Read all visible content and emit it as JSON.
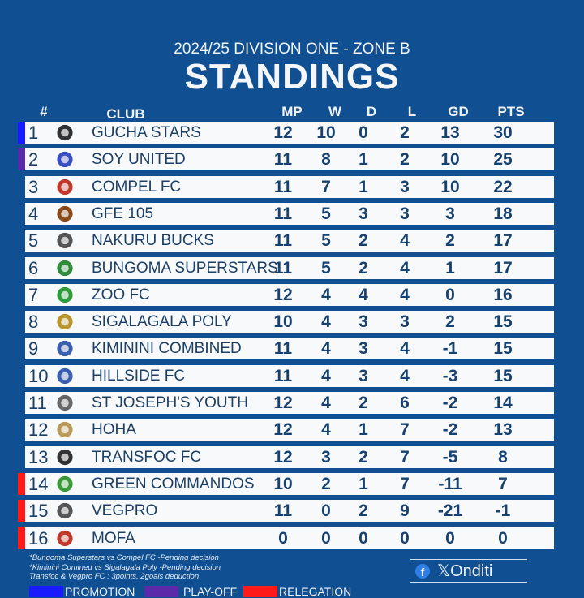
{
  "header": {
    "subtitle": "2024/25 DIVISION ONE - ZONE B",
    "title": "STANDINGS"
  },
  "columns": {
    "rank": "#",
    "club": "CLUB",
    "mp": "MP",
    "w": "W",
    "d": "D",
    "l": "L",
    "gd": "GD",
    "pts": "PTS"
  },
  "rows": [
    {
      "rank": "1",
      "club": "GUCHA STARS",
      "mp": "12",
      "w": "10",
      "d": "0",
      "l": "2",
      "gd": "13",
      "pts": "30",
      "status": "promotion"
    },
    {
      "rank": "2",
      "club": "SOY UNITED",
      "mp": "11",
      "w": "8",
      "d": "1",
      "l": "2",
      "gd": "10",
      "pts": "25",
      "status": "play-off"
    },
    {
      "rank": "3",
      "club": "COMPEL FC",
      "mp": "11",
      "w": "7",
      "d": "1",
      "l": "3",
      "gd": "10",
      "pts": "22",
      "status": ""
    },
    {
      "rank": "4",
      "club": "GFE 105",
      "mp": "11",
      "w": "5",
      "d": "3",
      "l": "3",
      "gd": "3",
      "pts": "18",
      "status": ""
    },
    {
      "rank": "5",
      "club": "NAKURU BUCKS",
      "mp": "11",
      "w": "5",
      "d": "2",
      "l": "4",
      "gd": "2",
      "pts": "17",
      "status": ""
    },
    {
      "rank": "6",
      "club": "BUNGOMA SUPERSTARS",
      "mp": "11",
      "w": "5",
      "d": "2",
      "l": "4",
      "gd": "1",
      "pts": "17",
      "status": ""
    },
    {
      "rank": "7",
      "club": "ZOO FC",
      "mp": "12",
      "w": "4",
      "d": "4",
      "l": "4",
      "gd": "0",
      "pts": "16",
      "status": ""
    },
    {
      "rank": "8",
      "club": "SIGALAGALA POLY",
      "mp": "10",
      "w": "4",
      "d": "3",
      "l": "3",
      "gd": "2",
      "pts": "15",
      "status": ""
    },
    {
      "rank": "9",
      "club": "KIMININI COMBINED",
      "mp": "11",
      "w": "4",
      "d": "3",
      "l": "4",
      "gd": "-1",
      "pts": "15",
      "status": ""
    },
    {
      "rank": "10",
      "club": "HILLSIDE FC",
      "mp": "11",
      "w": "4",
      "d": "3",
      "l": "4",
      "gd": "-3",
      "pts": "15",
      "status": ""
    },
    {
      "rank": "11",
      "club": "ST JOSEPH'S YOUTH",
      "mp": "12",
      "w": "4",
      "d": "2",
      "l": "6",
      "gd": "-2",
      "pts": "14",
      "status": ""
    },
    {
      "rank": "12",
      "club": "HOHA",
      "mp": "12",
      "w": "4",
      "d": "1",
      "l": "7",
      "gd": "-2",
      "pts": "13",
      "status": ""
    },
    {
      "rank": "13",
      "club": "TRANSFOC FC",
      "mp": "12",
      "w": "3",
      "d": "2",
      "l": "7",
      "gd": "-5",
      "pts": "8",
      "status": ""
    },
    {
      "rank": "14",
      "club": "GREEN COMMANDOS",
      "mp": "10",
      "w": "2",
      "d": "1",
      "l": "7",
      "gd": "-11",
      "pts": "7",
      "status": "relegation"
    },
    {
      "rank": "15",
      "club": "VEGPRO",
      "mp": "11",
      "w": "0",
      "d": "2",
      "l": "9",
      "gd": "-21",
      "pts": "-1",
      "status": "relegation"
    },
    {
      "rank": "16",
      "club": "MOFA",
      "mp": "0",
      "w": "0",
      "d": "0",
      "l": "0",
      "gd": "0",
      "pts": "0",
      "status": "relegation"
    }
  ],
  "notes": [
    "*Bungoma Superstars vs Compel FC -Pending decision",
    "*Kiminini Comined vs Sigalagala Poly -Pending decision",
    "Transfoc & Vegpro FC : 3points, 2goals deduction"
  ],
  "legend": [
    {
      "label": "PROMOTION",
      "color": "#1a1aff"
    },
    {
      "label": "PLAY-OFF",
      "color": "#5b2aa8"
    },
    {
      "label": "RELEGATION",
      "color": "#ff1a1a"
    }
  ],
  "social": {
    "facebook_icon": "f",
    "x_icon": "𝕏",
    "handle": "Onditi"
  },
  "colors": {
    "background": "#0f4f92",
    "row": "#f7f9fb",
    "text": "#17416e",
    "promotion": "#1a1aff",
    "playoff": "#5b2aa8",
    "relegation": "#ff1a1a"
  }
}
